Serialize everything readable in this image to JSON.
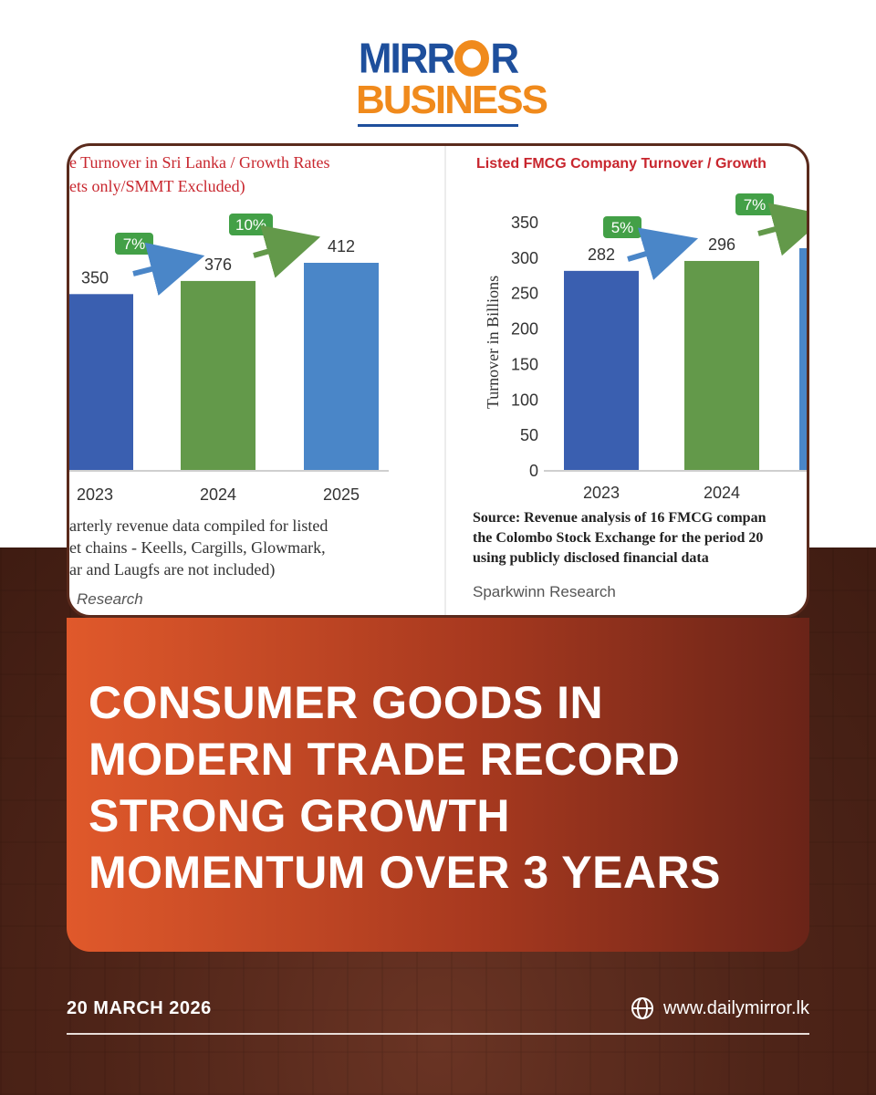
{
  "brand": {
    "line1_pre": "MIRR",
    "line1_post": "R",
    "line2": "BUSINESS"
  },
  "left_chart": {
    "title_line1": "e Turnover in Sri Lanka / Growth Rates",
    "title_line2": "ets only/SMMT Excluded)",
    "categories": [
      "2023",
      "2024",
      "2025"
    ],
    "values": [
      350,
      376,
      412
    ],
    "value_labels": [
      "350",
      "376",
      "412"
    ],
    "growth_labels": [
      "7%",
      "10%"
    ],
    "note_lines": [
      "arterly revenue data compiled for listed",
      "et chains - Keells, Cargills, Glowmark,",
      "ar and Laugfs are not included)"
    ],
    "credit": "Research",
    "colors": [
      "#3a5fb0",
      "#63994a",
      "#4a86c8"
    ]
  },
  "right_chart": {
    "title": "Listed FMCG Company Turnover / Growth",
    "ylabel": "Turnover in Billions",
    "yticks": [
      "350",
      "300",
      "250",
      "200",
      "150",
      "100",
      "50",
      "0"
    ],
    "categories": [
      "2023",
      "2024"
    ],
    "values": [
      282,
      296
    ],
    "value_labels": [
      "282",
      "296"
    ],
    "growth_labels": [
      "5%",
      "7%"
    ],
    "source_lines": [
      "Source: Revenue analysis of 16 FMCG compan",
      "the Colombo Stock Exchange for the period 20",
      "using publicly disclosed financial data"
    ],
    "credit": "Sparkwinn Research",
    "colors": [
      "#3a5fb0",
      "#63994a",
      "#4a86c8"
    ]
  },
  "chart_data": [
    {
      "type": "bar",
      "title": "Turnover in Sri Lanka / Growth Rates",
      "categories": [
        "2023",
        "2024",
        "2025"
      ],
      "values": [
        350,
        376,
        412
      ],
      "annotations": [
        "7%",
        "10%"
      ]
    },
    {
      "type": "bar",
      "title": "Listed FMCG Company Turnover / Growth",
      "ylabel": "Turnover in Billions",
      "ylim": [
        0,
        350
      ],
      "categories": [
        "2023",
        "2024"
      ],
      "values": [
        282,
        296
      ],
      "annotations": [
        "5%",
        "7%"
      ]
    }
  ],
  "headline": {
    "lines": [
      "CONSUMER GOODS IN",
      "MODERN TRADE RECORD",
      "STRONG GROWTH",
      "MOMENTUM OVER 3 YEARS"
    ]
  },
  "footer": {
    "date": "20 MARCH 2026",
    "website": "www.dailymirror.lk"
  }
}
